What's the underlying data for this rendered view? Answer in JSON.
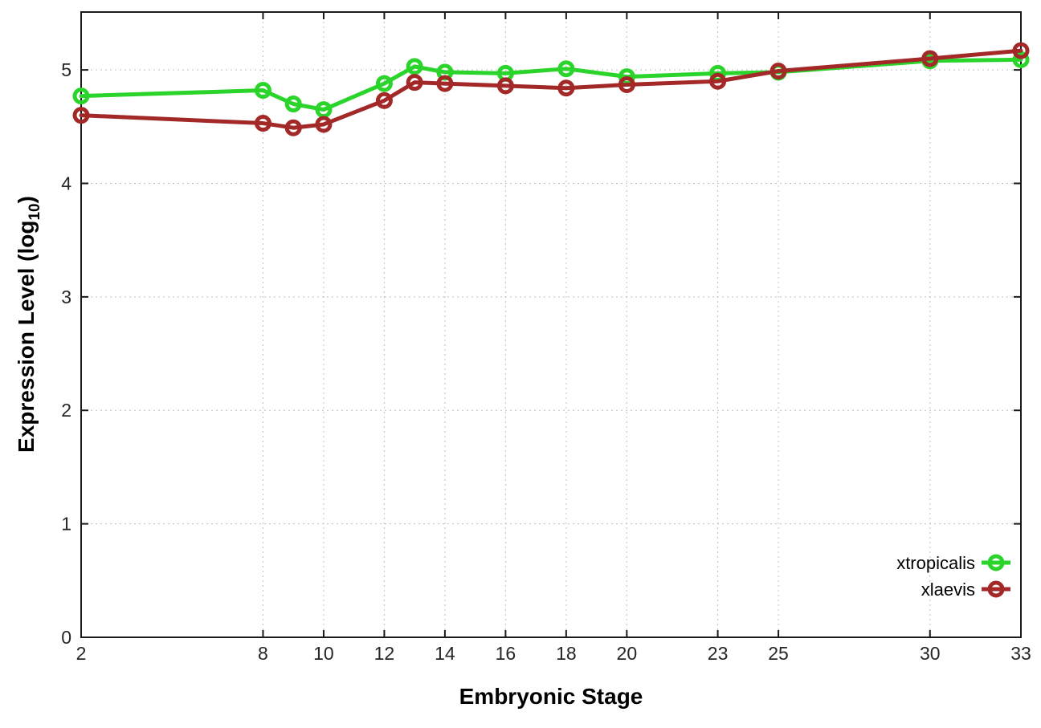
{
  "labels": {
    "xlabel": "Embryonic Stage",
    "ylabel_prefix": "Expression Level (log",
    "ylabel_sub": "10",
    "ylabel_suffix": ")"
  },
  "colors": {
    "background": "#ffffff",
    "axis": "#1a1a1a",
    "grid": "#c0c0c0",
    "tick_text": "#262626",
    "xtropicalis": "#2bd42b",
    "xlaevis": "#a32929"
  },
  "legend": {
    "entries": [
      {
        "label": "xtropicalis",
        "color": "#2bd42b"
      },
      {
        "label": "xlaevis",
        "color": "#a32929"
      }
    ],
    "position": "inside-right"
  },
  "chart_data": {
    "type": "line",
    "title": "",
    "xlabel": "Embryonic Stage",
    "ylabel": "Expression Level (log10)",
    "xlim": [
      2,
      33
    ],
    "ylim": [
      0,
      5.51
    ],
    "xticks": [
      2,
      8,
      10,
      12,
      14,
      16,
      18,
      20,
      23,
      25,
      30,
      33
    ],
    "yticks": [
      0,
      1,
      2,
      3,
      4,
      5
    ],
    "grid": true,
    "legend_position": "inside bottom-right",
    "x": [
      2,
      8,
      9,
      10,
      12,
      13,
      14,
      16,
      18,
      20,
      23,
      25,
      30,
      33
    ],
    "series": [
      {
        "name": "xtropicalis",
        "color": "#2bd42b",
        "values": [
          4.77,
          4.82,
          4.7,
          4.65,
          4.88,
          5.03,
          4.98,
          4.97,
          5.01,
          4.94,
          4.97,
          4.98,
          5.08,
          5.09
        ]
      },
      {
        "name": "xlaevis",
        "color": "#a32929",
        "values": [
          4.6,
          4.53,
          4.49,
          4.52,
          4.73,
          4.89,
          4.88,
          4.86,
          4.84,
          4.87,
          4.9,
          4.99,
          5.1,
          5.17
        ]
      }
    ]
  }
}
